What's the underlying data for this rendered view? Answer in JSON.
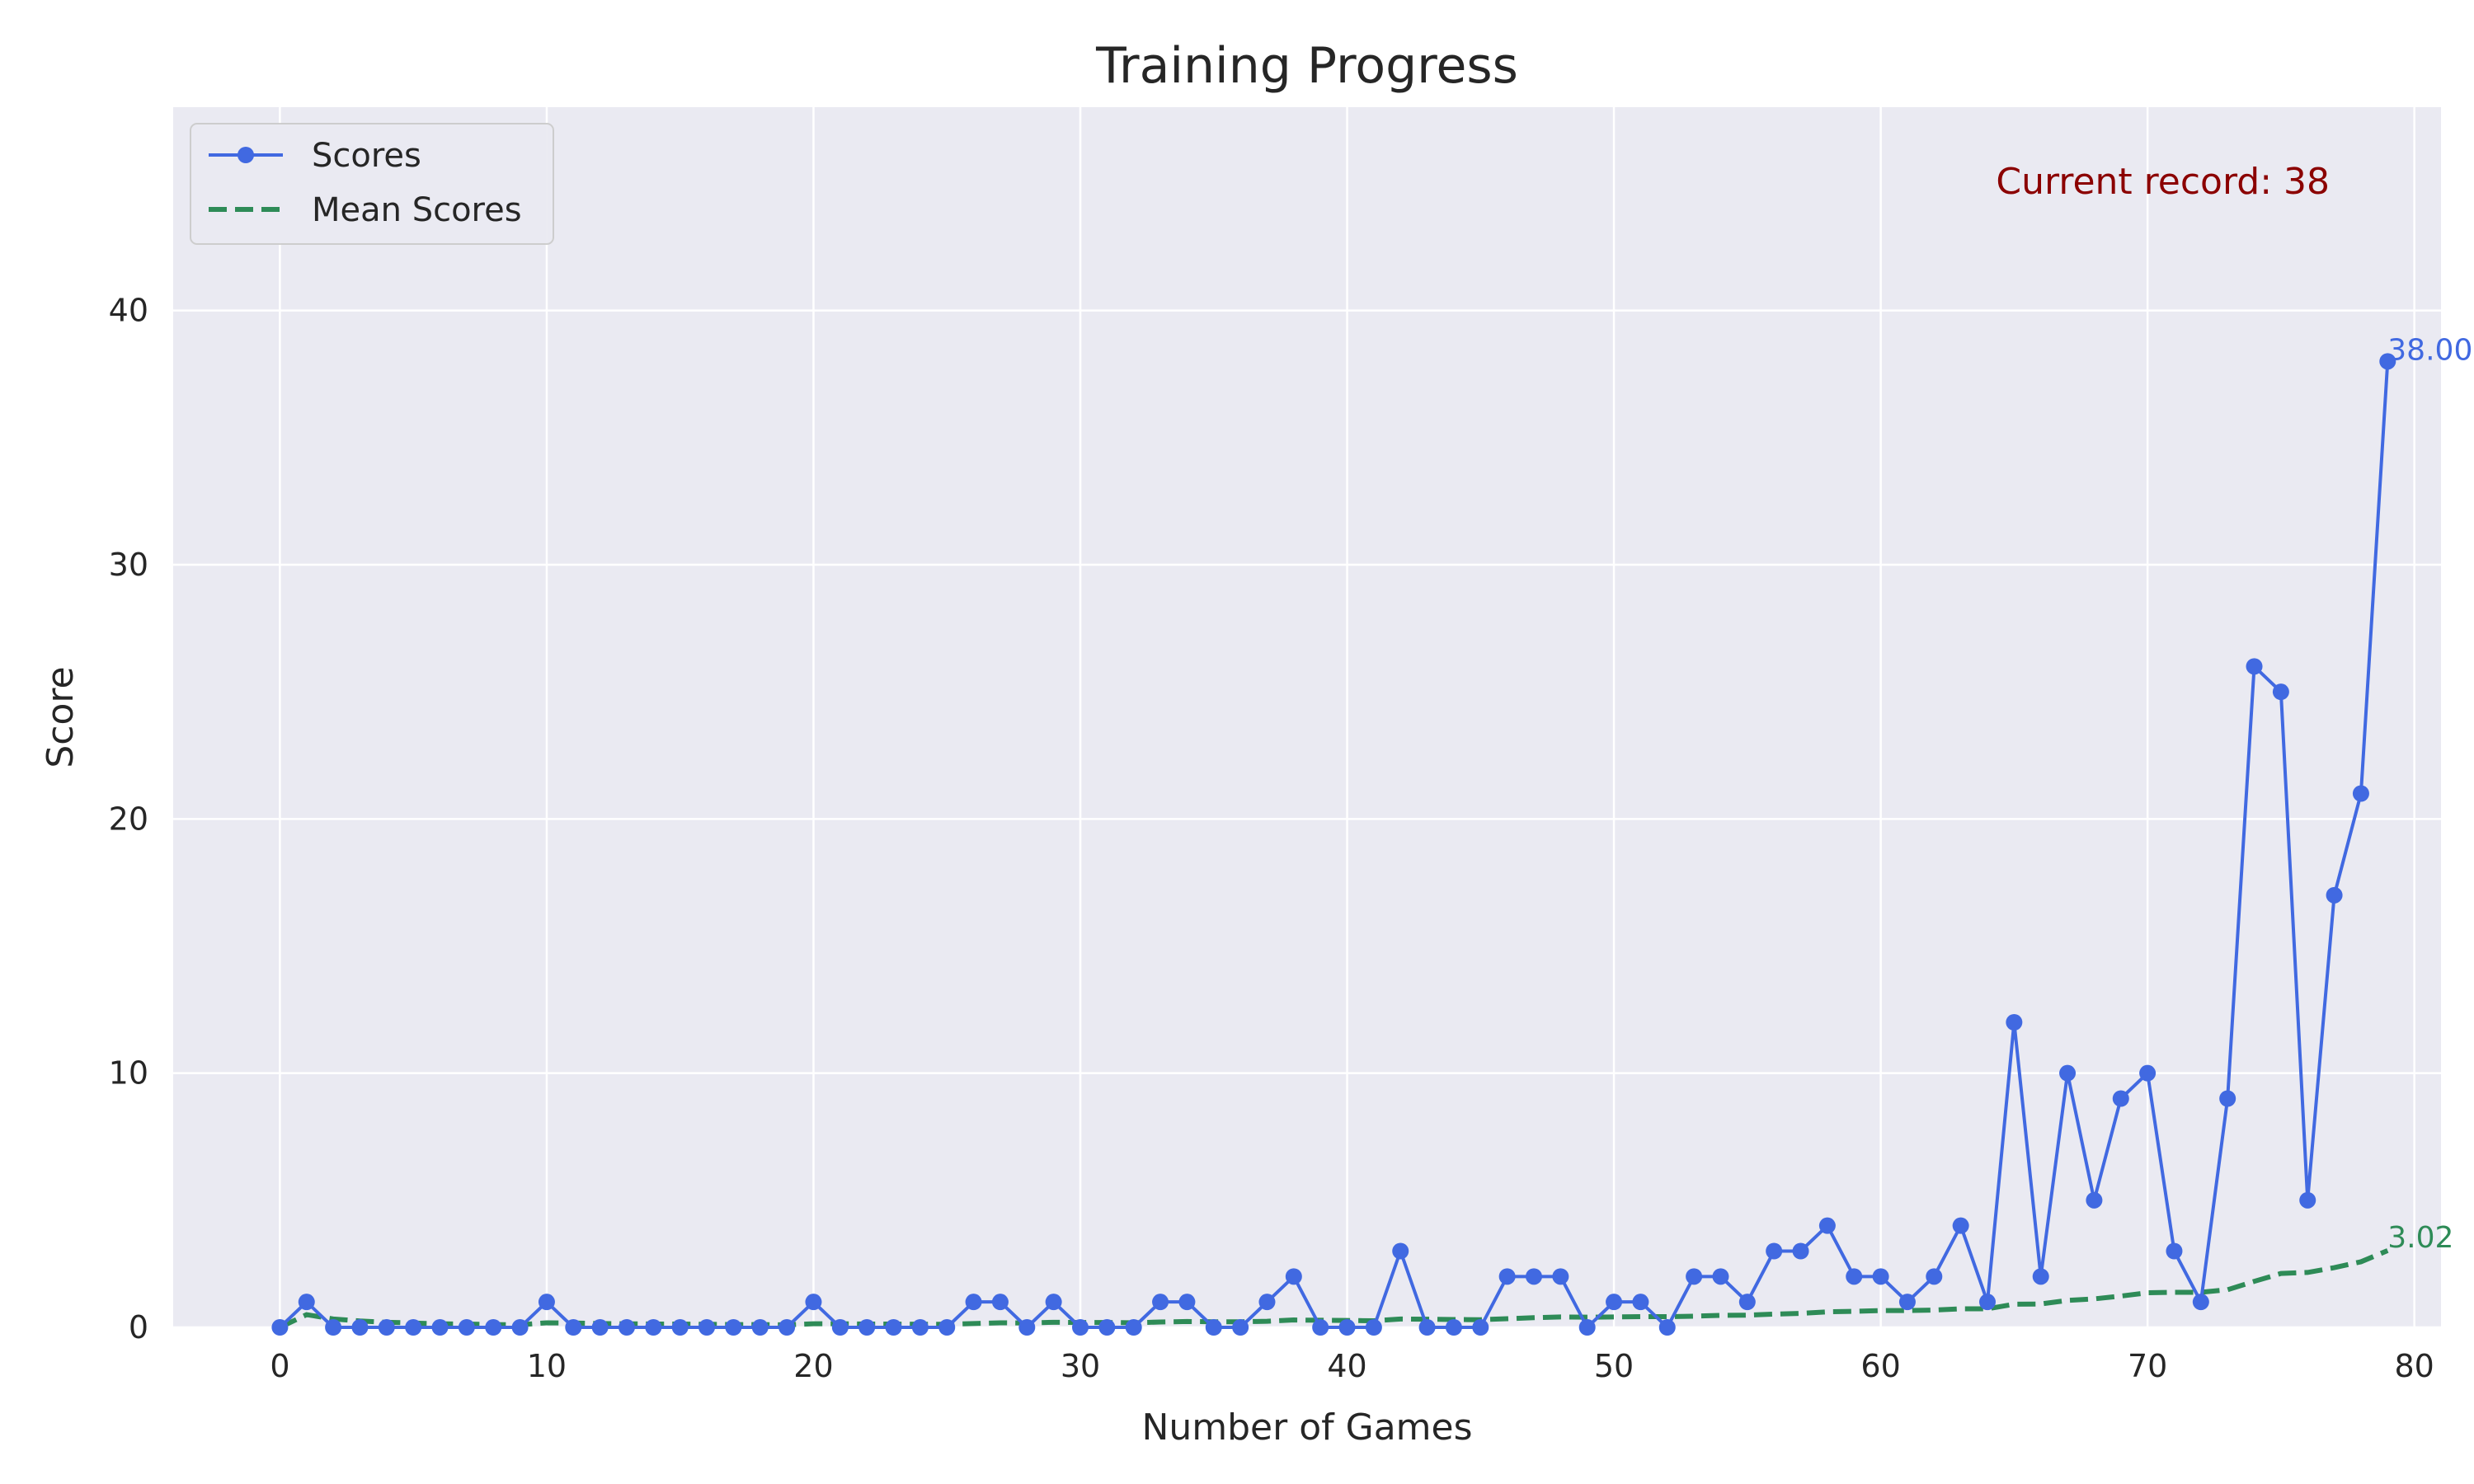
{
  "chart_data": {
    "type": "line",
    "title": "Training Progress",
    "xlabel": "Number of Games",
    "ylabel": "Score",
    "xlim": [
      -4,
      81
    ],
    "ylim": [
      0,
      48
    ],
    "xticks": [
      0,
      10,
      20,
      30,
      40,
      50,
      60,
      70,
      80
    ],
    "yticks": [
      0,
      10,
      20,
      30,
      40
    ],
    "grid": true,
    "legend_position": "top-left",
    "annotation": "Current record: 38",
    "series": [
      {
        "name": "Scores",
        "color": "#4169e1",
        "style": "solid-with-markers",
        "end_label": "38.00",
        "x": [
          0,
          1,
          2,
          3,
          4,
          5,
          6,
          7,
          8,
          9,
          10,
          11,
          12,
          13,
          14,
          15,
          16,
          17,
          18,
          19,
          20,
          21,
          22,
          23,
          24,
          25,
          26,
          27,
          28,
          29,
          30,
          31,
          32,
          33,
          34,
          35,
          36,
          37,
          38,
          39,
          40,
          41,
          42,
          43,
          44,
          45,
          46,
          47,
          48,
          49,
          50,
          51,
          52,
          53,
          54,
          55,
          56,
          57,
          58,
          59,
          60,
          61,
          62,
          63,
          64,
          65,
          66,
          67,
          68,
          69,
          70,
          71,
          72,
          73,
          74,
          75,
          76,
          77,
          78,
          79
        ],
        "values": [
          0,
          1,
          0,
          0,
          0,
          0,
          0,
          0,
          0,
          0,
          1,
          0,
          0,
          0,
          0,
          0,
          0,
          0,
          0,
          0,
          1,
          0,
          0,
          0,
          0,
          0,
          1,
          1,
          0,
          1,
          0,
          0,
          0,
          1,
          1,
          0,
          0,
          1,
          2,
          0,
          0,
          0,
          3,
          0,
          0,
          0,
          2,
          2,
          2,
          0,
          1,
          1,
          0,
          2,
          2,
          1,
          3,
          3,
          4,
          2,
          2,
          1,
          2,
          4,
          1,
          12,
          2,
          10,
          5,
          9,
          10,
          3,
          1,
          9,
          26,
          25,
          5,
          17,
          21,
          38
        ]
      },
      {
        "name": "Mean Scores",
        "color": "#2e8b57",
        "style": "dashed",
        "end_label": "3.02",
        "x": [
          0,
          1,
          2,
          3,
          4,
          5,
          6,
          7,
          8,
          9,
          10,
          11,
          12,
          13,
          14,
          15,
          16,
          17,
          18,
          19,
          20,
          21,
          22,
          23,
          24,
          25,
          26,
          27,
          28,
          29,
          30,
          31,
          32,
          33,
          34,
          35,
          36,
          37,
          38,
          39,
          40,
          41,
          42,
          43,
          44,
          45,
          46,
          47,
          48,
          49,
          50,
          51,
          52,
          53,
          54,
          55,
          56,
          57,
          58,
          59,
          60,
          61,
          62,
          63,
          64,
          65,
          66,
          67,
          68,
          69,
          70,
          71,
          72,
          73,
          74,
          75,
          76,
          77,
          78,
          79
        ],
        "values": [
          0,
          0.5,
          0.33,
          0.25,
          0.2,
          0.17,
          0.14,
          0.13,
          0.11,
          0.1,
          0.18,
          0.17,
          0.15,
          0.14,
          0.13,
          0.13,
          0.12,
          0.11,
          0.11,
          0.1,
          0.14,
          0.14,
          0.13,
          0.13,
          0.12,
          0.12,
          0.15,
          0.18,
          0.17,
          0.2,
          0.19,
          0.19,
          0.18,
          0.21,
          0.23,
          0.22,
          0.22,
          0.24,
          0.29,
          0.28,
          0.27,
          0.26,
          0.33,
          0.32,
          0.31,
          0.3,
          0.34,
          0.38,
          0.41,
          0.4,
          0.41,
          0.42,
          0.42,
          0.44,
          0.47,
          0.48,
          0.52,
          0.55,
          0.61,
          0.63,
          0.66,
          0.66,
          0.68,
          0.73,
          0.73,
          0.91,
          0.92,
          1.06,
          1.12,
          1.23,
          1.36,
          1.38,
          1.38,
          1.48,
          1.81,
          2.12,
          2.16,
          2.35,
          2.58,
          3.02
        ]
      }
    ]
  }
}
